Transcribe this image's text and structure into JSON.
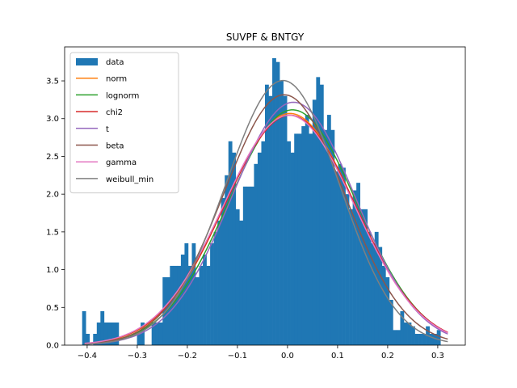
{
  "chart_data": {
    "type": "bar",
    "title": "SUVPF & BNTGY",
    "xlabel": "",
    "ylabel": "",
    "xlim": [
      -0.445,
      0.355
    ],
    "ylim": [
      0,
      3.95
    ],
    "x_ticks": [
      -0.4,
      -0.3,
      -0.2,
      -0.1,
      0.0,
      0.1,
      0.2,
      0.3
    ],
    "x_tick_labels": [
      "−0.4",
      "−0.3",
      "−0.2",
      "−0.1",
      "0.0",
      "0.1",
      "0.2",
      "0.3"
    ],
    "y_ticks": [
      0.0,
      0.5,
      1.0,
      1.5,
      2.0,
      2.5,
      3.0,
      3.5
    ],
    "y_tick_labels": [
      "0.0",
      "0.5",
      "1.0",
      "1.5",
      "2.0",
      "2.5",
      "3.0",
      "3.5"
    ],
    "legend_position": "upper-left",
    "histogram": {
      "name": "data",
      "color": "#1f77b4",
      "bin_start": -0.41,
      "bin_width": 0.0073,
      "values": [
        0.45,
        0.15,
        0.0,
        0.15,
        0.3,
        0.45,
        0.3,
        0.3,
        0.3,
        0.3,
        0.0,
        0.0,
        0.0,
        0.0,
        0.0,
        0.15,
        0.3,
        0.0,
        0.0,
        0.3,
        0.3,
        0.3,
        0.9,
        0.9,
        1.05,
        1.05,
        1.05,
        1.2,
        1.35,
        1.05,
        1.35,
        0.9,
        1.05,
        1.2,
        1.05,
        1.35,
        1.5,
        1.65,
        1.95,
        2.25,
        2.7,
        2.55,
        1.8,
        1.65,
        2.1,
        2.1,
        2.1,
        2.4,
        2.55,
        2.7,
        3.45,
        3.3,
        3.8,
        3.75,
        3.5,
        3.3,
        2.7,
        2.55,
        2.8,
        2.8,
        2.9,
        3.05,
        2.8,
        3.25,
        3.55,
        3.45,
        2.85,
        3.05,
        2.85,
        2.3,
        2.4,
        2.35,
        2.0,
        1.8,
        2.05,
        2.15,
        1.8,
        1.8,
        1.5,
        1.35,
        1.5,
        1.3,
        1.05,
        0.9,
        0.6,
        0.2,
        0.2,
        0.45,
        0.3,
        0.3,
        0.25,
        0.15,
        0.15,
        0.15,
        0.25,
        0.15,
        0.15,
        0.2
      ]
    },
    "curves": [
      {
        "name": "norm",
        "color": "#ff7f0e",
        "family": "normal",
        "params": {
          "mu": 0.005,
          "sigma": 0.13,
          "scale": 1.0
        }
      },
      {
        "name": "lognorm",
        "color": "#2ca02c",
        "family": "normal",
        "params": {
          "mu": 0.01,
          "sigma": 0.128,
          "scale": 1.0
        }
      },
      {
        "name": "chi2",
        "color": "#d62728",
        "family": "normal",
        "params": {
          "mu": 0.005,
          "sigma": 0.131,
          "scale": 1.0
        }
      },
      {
        "name": "t",
        "color": "#9467bd",
        "family": "normal",
        "params": {
          "mu": 0.012,
          "sigma": 0.124,
          "scale": 1.0
        }
      },
      {
        "name": "beta",
        "color": "#8c564b",
        "family": "skewnorm",
        "params": {
          "mu": 0.03,
          "sigma": 0.126,
          "alpha": -0.4
        }
      },
      {
        "name": "gamma",
        "color": "#e377c2",
        "family": "normal",
        "params": {
          "mu": 0.003,
          "sigma": 0.131,
          "scale": 1.0
        }
      },
      {
        "name": "weibull_min",
        "color": "#7f7f7f",
        "family": "skewnorm",
        "params": {
          "mu": 0.04,
          "sigma": 0.125,
          "alpha": -0.6
        }
      }
    ]
  }
}
